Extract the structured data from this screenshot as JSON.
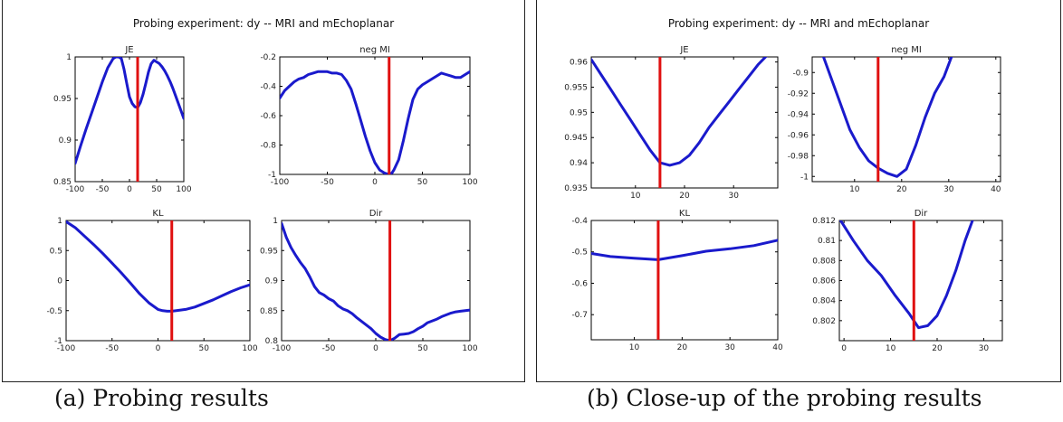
{
  "suptitle": "Probing experiment: dy -- MRI and mEchoplanar",
  "captions": {
    "a": "(a) Probing results",
    "b": "(b) Close-up of the probing results"
  },
  "colors": {
    "curve": "#1a1acc",
    "marker": "#e01010"
  },
  "chart_data": [
    {
      "type": "line",
      "panel": "a",
      "title": "JE",
      "xlim": [
        -100,
        100
      ],
      "ylim": [
        0.85,
        1
      ],
      "xticks": [
        -100,
        -50,
        0,
        50,
        100
      ],
      "xtick_labels": [
        "-100",
        "-50",
        "0",
        "50",
        "100"
      ],
      "yticks": [
        0.85,
        0.9,
        0.95,
        1
      ],
      "ytick_labels": [
        "0.85",
        "0.9",
        "0.95",
        "1"
      ],
      "marker_x": 15,
      "series": [
        {
          "x": [
            -100,
            -90,
            -80,
            -70,
            -60,
            -50,
            -40,
            -30,
            -25,
            -20,
            -15,
            -10,
            -5,
            0,
            5,
            10,
            15,
            20,
            25,
            30,
            35,
            40,
            45,
            50,
            55,
            60,
            65,
            70,
            75,
            80,
            85,
            90,
            95,
            100
          ],
          "y": [
            0.872,
            0.893,
            0.913,
            0.932,
            0.951,
            0.97,
            0.987,
            0.998,
            1.0,
            1.0,
            0.998,
            0.985,
            0.968,
            0.952,
            0.944,
            0.94,
            0.939,
            0.945,
            0.955,
            0.968,
            0.982,
            0.992,
            0.996,
            0.994,
            0.992,
            0.988,
            0.983,
            0.977,
            0.97,
            0.962,
            0.953,
            0.944,
            0.935,
            0.926
          ]
        }
      ]
    },
    {
      "type": "line",
      "panel": "a",
      "title": "neg MI",
      "xlim": [
        -100,
        100
      ],
      "ylim": [
        -1,
        -0.2
      ],
      "xticks": [
        -100,
        -50,
        0,
        50,
        100
      ],
      "xtick_labels": [
        "-100",
        "-50",
        "0",
        "50",
        "100"
      ],
      "yticks": [
        -1,
        -0.8,
        -0.6,
        -0.4,
        -0.2
      ],
      "ytick_labels": [
        "-1",
        "-0.8",
        "-0.6",
        "-0.4",
        "-0.2"
      ],
      "marker_x": 15,
      "series": [
        {
          "x": [
            -100,
            -95,
            -90,
            -85,
            -80,
            -75,
            -70,
            -65,
            -60,
            -55,
            -50,
            -45,
            -40,
            -35,
            -30,
            -25,
            -20,
            -15,
            -10,
            -5,
            0,
            5,
            10,
            15,
            18,
            20,
            25,
            30,
            35,
            40,
            45,
            50,
            55,
            60,
            65,
            70,
            75,
            80,
            85,
            90,
            95,
            100
          ],
          "y": [
            -0.48,
            -0.43,
            -0.4,
            -0.37,
            -0.35,
            -0.34,
            -0.32,
            -0.31,
            -0.3,
            -0.3,
            -0.3,
            -0.31,
            -0.31,
            -0.32,
            -0.36,
            -0.42,
            -0.52,
            -0.63,
            -0.74,
            -0.84,
            -0.92,
            -0.97,
            -0.99,
            -1.0,
            -0.99,
            -0.97,
            -0.9,
            -0.77,
            -0.62,
            -0.49,
            -0.42,
            -0.39,
            -0.37,
            -0.35,
            -0.33,
            -0.31,
            -0.32,
            -0.33,
            -0.34,
            -0.34,
            -0.32,
            -0.3
          ]
        }
      ]
    },
    {
      "type": "line",
      "panel": "a",
      "title": "KL",
      "xlim": [
        -100,
        100
      ],
      "ylim": [
        -1,
        1
      ],
      "xticks": [
        -100,
        -50,
        0,
        50,
        100
      ],
      "xtick_labels": [
        "-100",
        "-50",
        "0",
        "50",
        "100"
      ],
      "yticks": [
        -1,
        -0.5,
        0,
        0.5,
        1
      ],
      "ytick_labels": [
        "-1",
        "-0.5",
        "0",
        "0.5",
        "1"
      ],
      "marker_x": 15,
      "series": [
        {
          "x": [
            -100,
            -90,
            -80,
            -70,
            -60,
            -50,
            -40,
            -30,
            -20,
            -10,
            0,
            5,
            10,
            15,
            20,
            30,
            40,
            50,
            60,
            70,
            80,
            90,
            100
          ],
          "y": [
            0.98,
            0.88,
            0.74,
            0.6,
            0.45,
            0.29,
            0.13,
            -0.04,
            -0.22,
            -0.37,
            -0.48,
            -0.5,
            -0.51,
            -0.51,
            -0.5,
            -0.48,
            -0.44,
            -0.38,
            -0.32,
            -0.25,
            -0.18,
            -0.12,
            -0.07
          ]
        }
      ]
    },
    {
      "type": "line",
      "panel": "a",
      "title": "Dir",
      "xlim": [
        -100,
        100
      ],
      "ylim": [
        0.8,
        1
      ],
      "xticks": [
        -100,
        -50,
        0,
        50,
        100
      ],
      "xtick_labels": [
        "-100",
        "-50",
        "0",
        "50",
        "100"
      ],
      "yticks": [
        0.8,
        0.85,
        0.9,
        0.95,
        1
      ],
      "ytick_labels": [
        "0.8",
        "0.85",
        "0.9",
        "0.95",
        "1"
      ],
      "marker_x": 15,
      "series": [
        {
          "x": [
            -100,
            -95,
            -90,
            -85,
            -80,
            -75,
            -70,
            -65,
            -60,
            -55,
            -50,
            -45,
            -40,
            -35,
            -30,
            -25,
            -20,
            -15,
            -10,
            -5,
            0,
            5,
            10,
            15,
            20,
            25,
            30,
            35,
            40,
            45,
            50,
            55,
            60,
            65,
            70,
            75,
            80,
            85,
            90,
            95,
            100
          ],
          "y": [
            0.995,
            0.972,
            0.955,
            0.942,
            0.93,
            0.92,
            0.906,
            0.89,
            0.88,
            0.876,
            0.87,
            0.866,
            0.858,
            0.853,
            0.85,
            0.845,
            0.838,
            0.832,
            0.826,
            0.82,
            0.812,
            0.806,
            0.802,
            0.8,
            0.804,
            0.81,
            0.811,
            0.812,
            0.815,
            0.82,
            0.824,
            0.83,
            0.833,
            0.836,
            0.84,
            0.843,
            0.846,
            0.848,
            0.849,
            0.85,
            0.851
          ]
        }
      ]
    },
    {
      "type": "line",
      "panel": "b",
      "title": "JE",
      "xlim": [
        1,
        39
      ],
      "ylim": [
        0.935,
        0.961
      ],
      "xticks": [
        10,
        20,
        30
      ],
      "xtick_labels": [
        "10",
        "20",
        "30"
      ],
      "yticks": [
        0.935,
        0.94,
        0.945,
        0.95,
        0.955,
        0.96
      ],
      "ytick_labels": [
        "0.935",
        "0.94",
        "0.945",
        "0.95",
        "0.955",
        "0.96"
      ],
      "marker_x": 15,
      "series": [
        {
          "x": [
            1,
            3,
            5,
            7,
            9,
            11,
            13,
            15,
            17,
            19,
            21,
            23,
            25,
            27,
            29,
            31,
            33,
            35,
            37
          ],
          "y": [
            0.9605,
            0.9575,
            0.9545,
            0.9515,
            0.9485,
            0.9455,
            0.9425,
            0.94,
            0.9395,
            0.94,
            0.9415,
            0.944,
            0.947,
            0.9495,
            0.952,
            0.9545,
            0.957,
            0.9595,
            0.9615
          ]
        }
      ]
    },
    {
      "type": "line",
      "panel": "b",
      "title": "neg MI",
      "xlim": [
        1,
        41
      ],
      "ylim": [
        -1.005,
        -0.885
      ],
      "xticks": [
        10,
        20,
        30,
        40
      ],
      "xtick_labels": [
        "10",
        "20",
        "30",
        "40"
      ],
      "yticks": [
        -1,
        -0.98,
        -0.96,
        -0.94,
        -0.92,
        -0.9
      ],
      "ytick_labels": [
        "-1",
        "-0.98",
        "-0.96",
        "-0.94",
        "-0.92",
        "-0.9"
      ],
      "marker_x": 15,
      "series": [
        {
          "x": [
            3,
            5,
            7,
            9,
            11,
            13,
            15,
            17,
            19,
            21,
            23,
            25,
            27,
            29,
            31
          ],
          "y": [
            -0.88,
            -0.905,
            -0.93,
            -0.955,
            -0.972,
            -0.985,
            -0.992,
            -0.997,
            -1.0,
            -0.993,
            -0.97,
            -0.943,
            -0.92,
            -0.904,
            -0.88
          ]
        }
      ]
    },
    {
      "type": "line",
      "panel": "b",
      "title": "KL",
      "xlim": [
        1,
        40
      ],
      "ylim": [
        -0.78,
        -0.4
      ],
      "xticks": [
        10,
        20,
        30,
        40
      ],
      "xtick_labels": [
        "10",
        "20",
        "30",
        "40"
      ],
      "yticks": [
        -0.7,
        -0.6,
        -0.5,
        -0.4
      ],
      "ytick_labels": [
        "-0.7",
        "-0.6",
        "-0.5",
        "-0.4"
      ],
      "marker_x": 15,
      "series": [
        {
          "x": [
            1,
            5,
            10,
            15,
            20,
            25,
            30,
            35,
            40
          ],
          "y": [
            -0.505,
            -0.515,
            -0.52,
            -0.525,
            -0.512,
            -0.498,
            -0.49,
            -0.48,
            -0.463
          ]
        }
      ]
    },
    {
      "type": "line",
      "panel": "b",
      "title": "Dir",
      "xlim": [
        -1,
        34
      ],
      "ylim": [
        0.8,
        0.812
      ],
      "xticks": [
        0,
        10,
        20,
        30
      ],
      "xtick_labels": [
        "0",
        "10",
        "20",
        "30"
      ],
      "yticks": [
        0.802,
        0.804,
        0.806,
        0.808,
        0.81,
        0.812
      ],
      "ytick_labels": [
        "0.802",
        "0.804",
        "0.806",
        "0.808",
        "0.81",
        "0.812"
      ],
      "marker_x": 15,
      "series": [
        {
          "x": [
            -1,
            2,
            5,
            8,
            11,
            14,
            16,
            18,
            20,
            22,
            24,
            26,
            28
          ],
          "y": [
            0.8122,
            0.81,
            0.808,
            0.8065,
            0.8045,
            0.8027,
            0.8013,
            0.8015,
            0.8025,
            0.8045,
            0.807,
            0.81,
            0.8125
          ]
        }
      ]
    }
  ]
}
